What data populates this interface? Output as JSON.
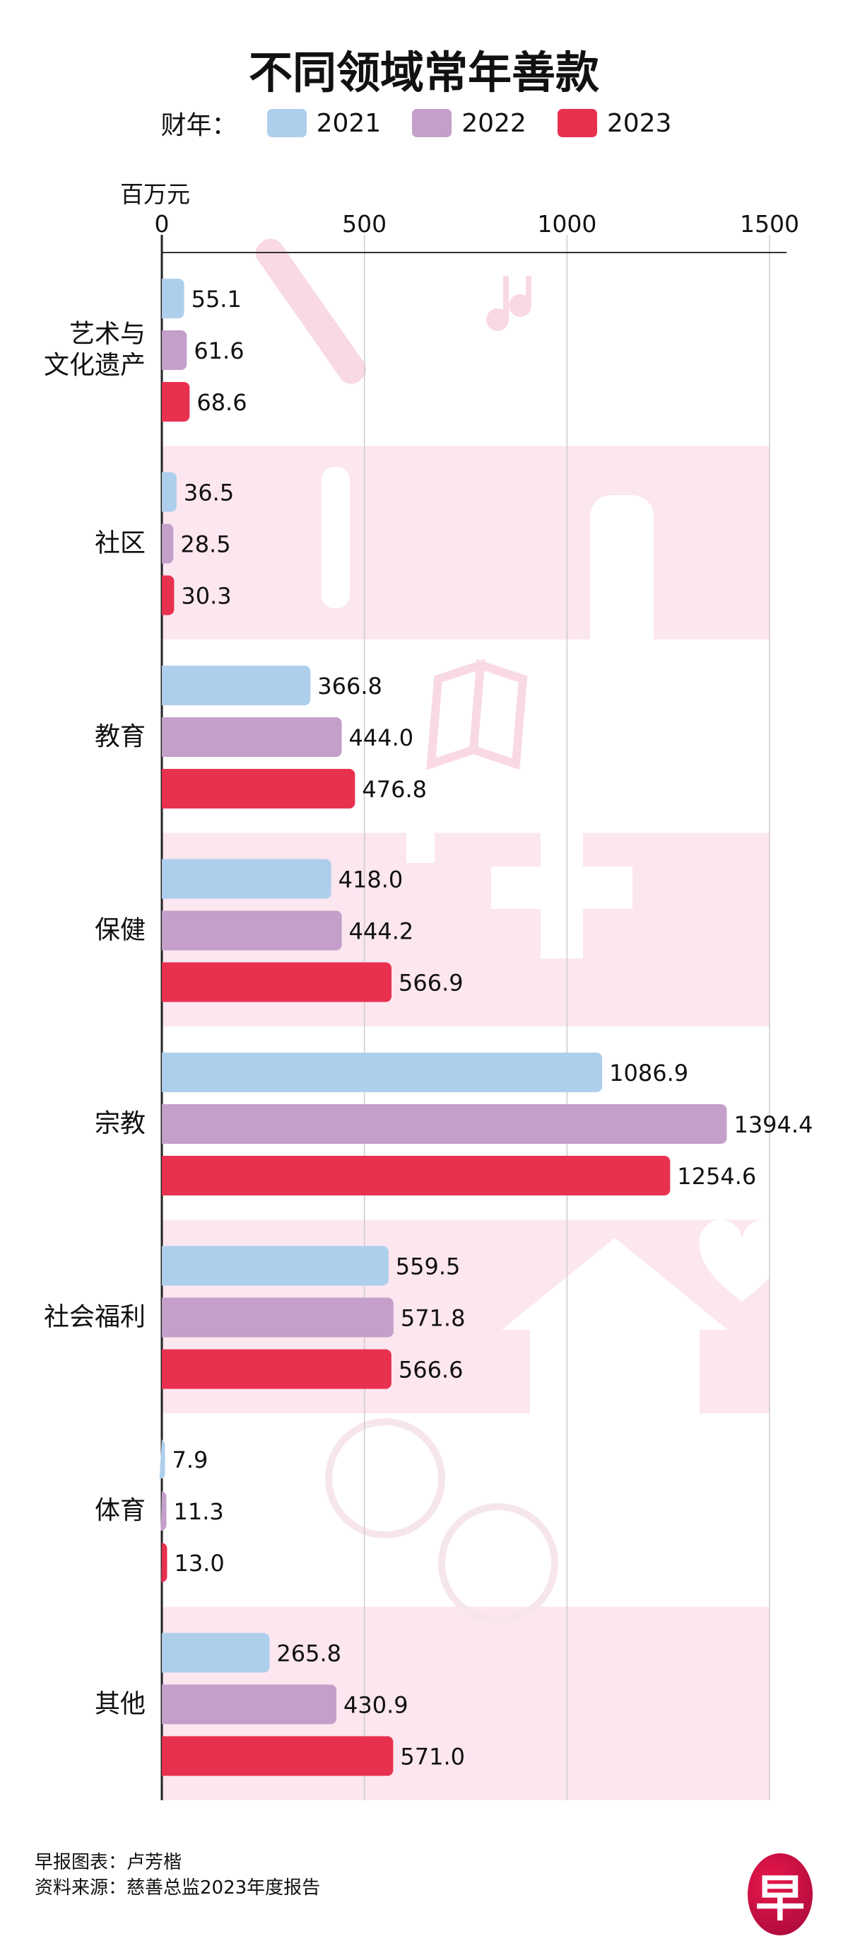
{
  "colors": {
    "2021": "#aecfec",
    "2022": "#c49fca",
    "2023": "#e8304f",
    "band": "#fce6ef",
    "icon": "#f9d9e5"
  },
  "chart_data": {
    "type": "bar",
    "orientation": "horizontal",
    "title": "不同领域常年善款",
    "legend_label": "财年：",
    "unit_label": "百万元",
    "xlim": [
      0,
      1500
    ],
    "xticks": [
      "0",
      "500",
      "1000",
      "1500"
    ],
    "categories": [
      "艺术与\n文化遗产",
      "社区",
      "教育",
      "保健",
      "宗教",
      "社会福利",
      "体育",
      "其他"
    ],
    "series": [
      {
        "name": "2021",
        "values": [
          55.1,
          36.5,
          366.8,
          418.0,
          1086.9,
          559.5,
          7.9,
          265.8
        ],
        "labels": [
          "55.1",
          "36.5",
          "366.8",
          "418.0",
          "1086.9",
          "559.5",
          "7.9",
          "265.8"
        ]
      },
      {
        "name": "2022",
        "values": [
          61.6,
          28.5,
          444.0,
          444.2,
          1394.4,
          571.8,
          11.3,
          430.9
        ],
        "labels": [
          "61.6",
          "28.5",
          "444.0",
          "444.2",
          "1394.4",
          "571.8",
          "11.3",
          "430.9"
        ]
      },
      {
        "name": "2023",
        "values": [
          68.6,
          30.3,
          476.8,
          566.9,
          1254.6,
          566.6,
          13.0,
          571.0
        ],
        "labels": [
          "68.6",
          "30.3",
          "476.8",
          "566.9",
          "1254.6",
          "566.6",
          "13.0",
          "571.0"
        ]
      }
    ]
  },
  "footer": {
    "credit": "早报图表：卢芳楷",
    "source": "资料来源：慈善总监2023年度报告",
    "logo": "早"
  }
}
